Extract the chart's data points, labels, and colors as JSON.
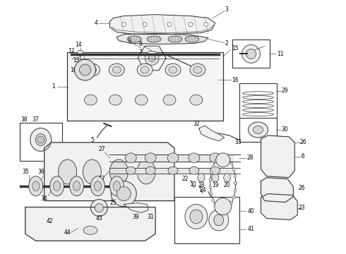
{
  "bg_color": "#ffffff",
  "line_color": "#333333",
  "figsize": [
    4.9,
    3.6
  ],
  "dpi": 100,
  "lw_main": 0.7,
  "lw_thin": 0.4,
  "label_fs": 5.5
}
